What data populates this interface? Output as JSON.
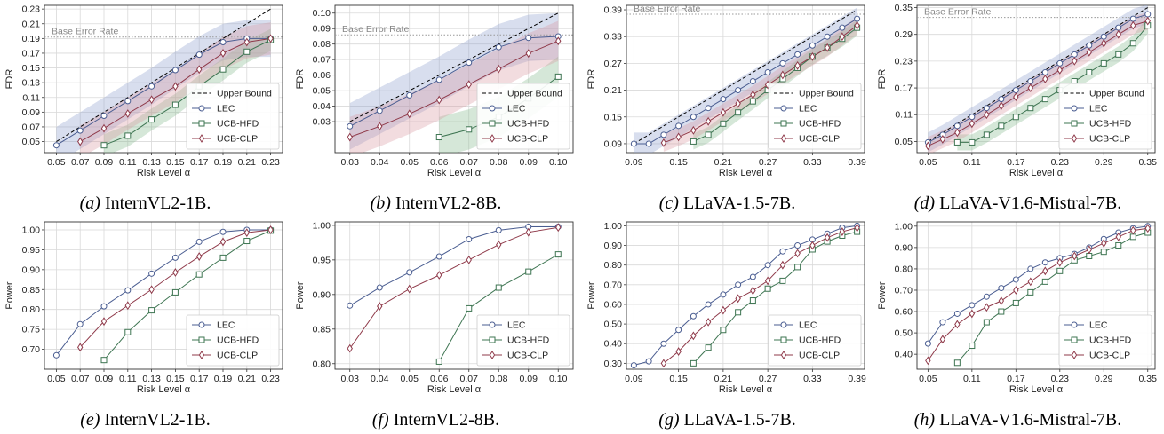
{
  "colors": {
    "LEC": "#4a5d91",
    "UCB-HFD": "#3e7552",
    "UCB-CLP": "#8f3a4a",
    "band_LEC": "#8fa0cf",
    "band_HFD": "#86bb8f",
    "band_CLP": "#d99aa4",
    "upper_bound": "#000000",
    "base_rate": "#999999"
  },
  "markers": {
    "LEC": "circle",
    "UCB-HFD": "square",
    "UCB-CLP": "diamond"
  },
  "captions": [
    {
      "label": "(a)",
      "text": "InternVL2-1B."
    },
    {
      "label": "(b)",
      "text": "InternVL2-8B."
    },
    {
      "label": "(c)",
      "text": "LLaVA-1.5-7B."
    },
    {
      "label": "(d)",
      "text": "LLaVA-V1.6-Mistral-7B."
    },
    {
      "label": "(e)",
      "text": "InternVL2-1B."
    },
    {
      "label": "(f)",
      "text": "InternVL2-8B."
    },
    {
      "label": "(g)",
      "text": "LLaVA-1.5-7B."
    },
    {
      "label": "(h)",
      "text": "LLaVA-V1.6-Mistral-7B."
    }
  ],
  "chart_data": [
    {
      "type": "line",
      "ylabel": "FDR",
      "xlabel": "Risk Level α",
      "xlim": [
        0.04,
        0.24
      ],
      "ylim": [
        0.035,
        0.235
      ],
      "grid": true,
      "legend": "bottom-right",
      "xticks": [
        "0.05",
        "0.07",
        "0.09",
        "0.11",
        "0.13",
        "0.15",
        "0.17",
        "0.19",
        "0.21",
        "0.23"
      ],
      "yticks": [
        "0.05",
        "0.07",
        "0.09",
        "0.11",
        "0.13",
        "0.15",
        "0.17",
        "0.19",
        "0.21",
        "0.23"
      ],
      "base_rate": 0.192,
      "base_label": "Base Error Rate",
      "upper_bound": [
        [
          0.05,
          0.05
        ],
        [
          0.23,
          0.23
        ]
      ],
      "series": [
        {
          "name": "Upper Bound",
          "style": "dashed"
        },
        {
          "name": "LEC",
          "x": [
            0.05,
            0.07,
            0.09,
            0.11,
            0.13,
            0.15,
            0.17,
            0.19,
            0.21,
            0.23
          ],
          "y": [
            0.045,
            0.065,
            0.085,
            0.105,
            0.125,
            0.147,
            0.168,
            0.185,
            0.19,
            0.19
          ],
          "band": 0.025
        },
        {
          "name": "UCB-HFD",
          "x": [
            0.09,
            0.11,
            0.13,
            0.15,
            0.17,
            0.19,
            0.21,
            0.23
          ],
          "y": [
            0.045,
            0.058,
            0.08,
            0.1,
            0.125,
            0.148,
            0.172,
            0.188
          ],
          "band": 0.015
        },
        {
          "name": "UCB-CLP",
          "x": [
            0.07,
            0.09,
            0.11,
            0.13,
            0.15,
            0.17,
            0.19,
            0.21,
            0.23
          ],
          "y": [
            0.05,
            0.068,
            0.088,
            0.107,
            0.125,
            0.148,
            0.17,
            0.185,
            0.19
          ],
          "band": 0.022
        }
      ]
    },
    {
      "type": "line",
      "ylabel": "FDR",
      "xlabel": "Risk Level α",
      "xlim": [
        0.025,
        0.105
      ],
      "ylim": [
        0.01,
        0.105
      ],
      "grid": true,
      "legend": "bottom-right",
      "xticks": [
        "0.03",
        "0.04",
        "0.05",
        "0.06",
        "0.07",
        "0.08",
        "0.09",
        "0.10"
      ],
      "yticks": [
        "0.03",
        "0.04",
        "0.05",
        "0.06",
        "0.07",
        "0.08",
        "0.09",
        "0.10"
      ],
      "base_rate": 0.086,
      "base_label": "Base Error Rate",
      "upper_bound": [
        [
          0.03,
          0.03
        ],
        [
          0.1,
          0.1
        ]
      ],
      "series": [
        {
          "name": "Upper Bound",
          "style": "dashed"
        },
        {
          "name": "LEC",
          "x": [
            0.03,
            0.04,
            0.05,
            0.06,
            0.07,
            0.08,
            0.09,
            0.1
          ],
          "y": [
            0.027,
            0.037,
            0.047,
            0.057,
            0.068,
            0.078,
            0.084,
            0.085
          ],
          "band": 0.015
        },
        {
          "name": "UCB-HFD",
          "x": [
            0.06,
            0.07,
            0.08,
            0.09,
            0.1
          ],
          "y": [
            0.02,
            0.025,
            0.033,
            0.045,
            0.059
          ],
          "band": 0.013
        },
        {
          "name": "UCB-CLP",
          "x": [
            0.03,
            0.04,
            0.05,
            0.06,
            0.07,
            0.08,
            0.09,
            0.1
          ],
          "y": [
            0.02,
            0.027,
            0.035,
            0.044,
            0.054,
            0.064,
            0.074,
            0.082
          ],
          "band": 0.013
        }
      ]
    },
    {
      "type": "line",
      "ylabel": "FDR",
      "xlabel": "Risk Level α",
      "xlim": [
        0.08,
        0.4
      ],
      "ylim": [
        0.07,
        0.4
      ],
      "grid": true,
      "legend": "bottom-right",
      "xticks": [
        "0.09",
        "0.15",
        "0.21",
        "0.27",
        "0.33",
        "0.39"
      ],
      "yticks": [
        "0.09",
        "0.15",
        "0.21",
        "0.27",
        "0.33",
        "0.39"
      ],
      "base_rate": 0.38,
      "base_label": "Base Error Rate",
      "upper_bound": [
        [
          0.09,
          0.09
        ],
        [
          0.39,
          0.39
        ]
      ],
      "series": [
        {
          "name": "Upper Bound",
          "style": "dashed"
        },
        {
          "name": "LEC",
          "x": [
            0.09,
            0.11,
            0.13,
            0.15,
            0.17,
            0.19,
            0.21,
            0.23,
            0.25,
            0.27,
            0.29,
            0.31,
            0.33,
            0.35,
            0.37,
            0.39
          ],
          "y": [
            0.09,
            0.09,
            0.11,
            0.13,
            0.15,
            0.17,
            0.19,
            0.21,
            0.23,
            0.25,
            0.27,
            0.29,
            0.31,
            0.33,
            0.35,
            0.37
          ],
          "band": 0.025
        },
        {
          "name": "UCB-HFD",
          "x": [
            0.17,
            0.19,
            0.21,
            0.23,
            0.25,
            0.27,
            0.29,
            0.31,
            0.33,
            0.35,
            0.37,
            0.39
          ],
          "y": [
            0.095,
            0.11,
            0.135,
            0.16,
            0.185,
            0.21,
            0.235,
            0.26,
            0.285,
            0.305,
            0.325,
            0.35
          ],
          "band": 0.018
        },
        {
          "name": "UCB-CLP",
          "x": [
            0.13,
            0.15,
            0.17,
            0.19,
            0.21,
            0.23,
            0.25,
            0.27,
            0.29,
            0.31,
            0.33,
            0.35,
            0.37,
            0.39
          ],
          "y": [
            0.092,
            0.105,
            0.12,
            0.14,
            0.16,
            0.18,
            0.2,
            0.222,
            0.244,
            0.265,
            0.285,
            0.305,
            0.33,
            0.355
          ],
          "band": 0.02
        }
      ]
    },
    {
      "type": "line",
      "ylabel": "FDR",
      "xlabel": "Risk Level α",
      "xlim": [
        0.035,
        0.36
      ],
      "ylim": [
        0.025,
        0.355
      ],
      "grid": true,
      "legend": "bottom-right",
      "xticks": [
        "0.05",
        "0.11",
        "0.17",
        "0.23",
        "0.29",
        "0.35"
      ],
      "yticks": [
        "0.05",
        "0.11",
        "0.17",
        "0.23",
        "0.29",
        "0.35"
      ],
      "base_rate": 0.328,
      "base_label": "Base Error Rate",
      "upper_bound": [
        [
          0.05,
          0.05
        ],
        [
          0.35,
          0.35
        ]
      ],
      "series": [
        {
          "name": "Upper Bound",
          "style": "dashed"
        },
        {
          "name": "LEC",
          "x": [
            0.05,
            0.07,
            0.09,
            0.11,
            0.13,
            0.15,
            0.17,
            0.19,
            0.21,
            0.23,
            0.25,
            0.27,
            0.29,
            0.31,
            0.33,
            0.35
          ],
          "y": [
            0.048,
            0.065,
            0.085,
            0.105,
            0.125,
            0.145,
            0.165,
            0.185,
            0.205,
            0.225,
            0.245,
            0.265,
            0.285,
            0.305,
            0.325,
            0.335
          ],
          "band": 0.022
        },
        {
          "name": "UCB-HFD",
          "x": [
            0.09,
            0.11,
            0.13,
            0.15,
            0.17,
            0.19,
            0.21,
            0.23,
            0.25,
            0.27,
            0.29,
            0.31,
            0.33,
            0.35
          ],
          "y": [
            0.048,
            0.048,
            0.065,
            0.085,
            0.105,
            0.125,
            0.145,
            0.165,
            0.185,
            0.205,
            0.225,
            0.245,
            0.27,
            0.31
          ],
          "band": 0.018
        },
        {
          "name": "UCB-CLP",
          "x": [
            0.05,
            0.07,
            0.09,
            0.11,
            0.13,
            0.15,
            0.17,
            0.19,
            0.21,
            0.23,
            0.25,
            0.27,
            0.29,
            0.31,
            0.33,
            0.35
          ],
          "y": [
            0.04,
            0.055,
            0.07,
            0.09,
            0.11,
            0.13,
            0.15,
            0.17,
            0.19,
            0.21,
            0.23,
            0.25,
            0.27,
            0.29,
            0.31,
            0.32
          ],
          "band": 0.02
        }
      ]
    },
    {
      "type": "line",
      "ylabel": "Power",
      "xlabel": "Risk Level α",
      "xlim": [
        0.04,
        0.24
      ],
      "ylim": [
        0.65,
        1.02
      ],
      "grid": true,
      "legend": "bottom-right",
      "xticks": [
        "0.05",
        "0.07",
        "0.09",
        "0.11",
        "0.13",
        "0.15",
        "0.17",
        "0.19",
        "0.21",
        "0.23"
      ],
      "yticks": [
        "0.70",
        "0.75",
        "0.80",
        "0.85",
        "0.90",
        "0.95",
        "1.00"
      ],
      "series": [
        {
          "name": "LEC",
          "x": [
            0.05,
            0.07,
            0.09,
            0.11,
            0.13,
            0.15,
            0.17,
            0.19,
            0.21,
            0.23
          ],
          "y": [
            0.685,
            0.763,
            0.808,
            0.848,
            0.89,
            0.93,
            0.97,
            0.995,
            1.0,
            1.0
          ]
        },
        {
          "name": "UCB-HFD",
          "x": [
            0.09,
            0.11,
            0.13,
            0.15,
            0.17,
            0.19,
            0.21,
            0.23
          ],
          "y": [
            0.673,
            0.743,
            0.798,
            0.843,
            0.888,
            0.93,
            0.972,
            0.998
          ]
        },
        {
          "name": "UCB-CLP",
          "x": [
            0.07,
            0.09,
            0.11,
            0.13,
            0.15,
            0.17,
            0.19,
            0.21,
            0.23
          ],
          "y": [
            0.705,
            0.77,
            0.81,
            0.85,
            0.893,
            0.933,
            0.97,
            0.993,
            1.0
          ]
        }
      ]
    },
    {
      "type": "line",
      "ylabel": "Power",
      "xlabel": "Risk Level α",
      "xlim": [
        0.025,
        0.105
      ],
      "ylim": [
        0.792,
        1.005
      ],
      "grid": true,
      "legend": "bottom-right",
      "xticks": [
        "0.03",
        "0.04",
        "0.05",
        "0.06",
        "0.07",
        "0.08",
        "0.09",
        "0.10"
      ],
      "yticks": [
        "0.80",
        "0.85",
        "0.90",
        "0.95",
        "1.00"
      ],
      "series": [
        {
          "name": "LEC",
          "x": [
            0.03,
            0.04,
            0.05,
            0.06,
            0.07,
            0.08,
            0.09,
            0.1
          ],
          "y": [
            0.884,
            0.91,
            0.932,
            0.955,
            0.98,
            0.993,
            0.998,
            0.998
          ]
        },
        {
          "name": "UCB-HFD",
          "x": [
            0.06,
            0.07,
            0.08,
            0.09,
            0.1
          ],
          "y": [
            0.803,
            0.88,
            0.91,
            0.933,
            0.958
          ]
        },
        {
          "name": "UCB-CLP",
          "x": [
            0.03,
            0.04,
            0.05,
            0.06,
            0.07,
            0.08,
            0.09,
            0.1
          ],
          "y": [
            0.822,
            0.883,
            0.908,
            0.928,
            0.95,
            0.972,
            0.99,
            0.997
          ]
        }
      ]
    },
    {
      "type": "line",
      "ylabel": "Power",
      "xlabel": "Risk Level α",
      "xlim": [
        0.08,
        0.4
      ],
      "ylim": [
        0.27,
        1.02
      ],
      "grid": true,
      "legend": "bottom-right",
      "xticks": [
        "0.09",
        "0.15",
        "0.21",
        "0.27",
        "0.33",
        "0.39"
      ],
      "yticks": [
        "0.30",
        "0.40",
        "0.50",
        "0.60",
        "0.70",
        "0.80",
        "0.90",
        "1.00"
      ],
      "series": [
        {
          "name": "LEC",
          "x": [
            0.09,
            0.11,
            0.13,
            0.15,
            0.17,
            0.19,
            0.21,
            0.23,
            0.25,
            0.27,
            0.29,
            0.31,
            0.33,
            0.35,
            0.37,
            0.39
          ],
          "y": [
            0.29,
            0.31,
            0.4,
            0.47,
            0.54,
            0.6,
            0.65,
            0.7,
            0.74,
            0.8,
            0.87,
            0.9,
            0.93,
            0.96,
            0.99,
            1.0
          ]
        },
        {
          "name": "UCB-HFD",
          "x": [
            0.17,
            0.19,
            0.21,
            0.23,
            0.25,
            0.27,
            0.29,
            0.31,
            0.33,
            0.35,
            0.37,
            0.39
          ],
          "y": [
            0.3,
            0.38,
            0.47,
            0.56,
            0.62,
            0.68,
            0.72,
            0.79,
            0.88,
            0.92,
            0.95,
            0.97
          ]
        },
        {
          "name": "UCB-CLP",
          "x": [
            0.13,
            0.15,
            0.17,
            0.19,
            0.21,
            0.23,
            0.25,
            0.27,
            0.29,
            0.31,
            0.33,
            0.35,
            0.37,
            0.39
          ],
          "y": [
            0.3,
            0.36,
            0.44,
            0.51,
            0.57,
            0.63,
            0.67,
            0.72,
            0.8,
            0.86,
            0.9,
            0.94,
            0.97,
            0.99
          ]
        }
      ]
    },
    {
      "type": "line",
      "ylabel": "Power",
      "xlabel": "Risk Level α",
      "xlim": [
        0.035,
        0.36
      ],
      "ylim": [
        0.33,
        1.02
      ],
      "grid": true,
      "legend": "bottom-right",
      "xticks": [
        "0.05",
        "0.11",
        "0.17",
        "0.23",
        "0.29",
        "0.35"
      ],
      "yticks": [
        "0.40",
        "0.50",
        "0.60",
        "0.70",
        "0.80",
        "0.90",
        "1.00"
      ],
      "series": [
        {
          "name": "LEC",
          "x": [
            0.05,
            0.07,
            0.09,
            0.11,
            0.13,
            0.15,
            0.17,
            0.19,
            0.21,
            0.23,
            0.25,
            0.27,
            0.29,
            0.31,
            0.33,
            0.35
          ],
          "y": [
            0.45,
            0.55,
            0.59,
            0.63,
            0.67,
            0.71,
            0.75,
            0.8,
            0.83,
            0.85,
            0.87,
            0.9,
            0.94,
            0.97,
            0.99,
            1.0
          ]
        },
        {
          "name": "UCB-HFD",
          "x": [
            0.09,
            0.11,
            0.13,
            0.15,
            0.17,
            0.19,
            0.21,
            0.23,
            0.25,
            0.27,
            0.29,
            0.31,
            0.33,
            0.35
          ],
          "y": [
            0.36,
            0.44,
            0.55,
            0.6,
            0.64,
            0.69,
            0.74,
            0.79,
            0.84,
            0.86,
            0.88,
            0.91,
            0.95,
            0.97
          ]
        },
        {
          "name": "UCB-CLP",
          "x": [
            0.05,
            0.07,
            0.09,
            0.11,
            0.13,
            0.15,
            0.17,
            0.19,
            0.21,
            0.23,
            0.25,
            0.27,
            0.29,
            0.31,
            0.33,
            0.35
          ],
          "y": [
            0.37,
            0.47,
            0.54,
            0.59,
            0.62,
            0.65,
            0.7,
            0.74,
            0.79,
            0.83,
            0.86,
            0.89,
            0.92,
            0.95,
            0.98,
            0.99
          ]
        }
      ]
    }
  ]
}
